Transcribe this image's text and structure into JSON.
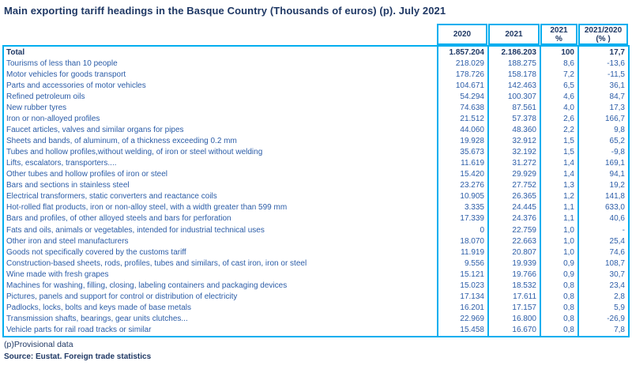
{
  "colors": {
    "border": "#00AEEF",
    "title_text": "#1F3864",
    "row_text": "#2B5CA7",
    "total_text": "#1F3864"
  },
  "footnote": "(p)Provisional data",
  "source": "Source: Eustat. Foreign trade statistics",
  "chart_data": {
    "type": "table",
    "title": "Main exporting tariff headings in the Basque Country (Thousands of euros) (p). July 2021",
    "columns": [
      "2020",
      "2021",
      "2021\n%",
      "2021/2020\n(% )"
    ],
    "rows": [
      [
        "Total",
        "1.857.204",
        "2.186.203",
        "100",
        "17,7"
      ],
      [
        "Tourisms of less than 10 people",
        "218.029",
        "188.275",
        "8,6",
        "-13,6"
      ],
      [
        "Motor vehicles for goods transport",
        "178.726",
        "158.178",
        "7,2",
        "-11,5"
      ],
      [
        "Parts and accessories of motor vehicles",
        "104.671",
        "142.463",
        "6,5",
        "36,1"
      ],
      [
        "Refined petroleum oils",
        "54.294",
        "100.307",
        "4,6",
        "84,7"
      ],
      [
        "New rubber tyres",
        "74.638",
        "87.561",
        "4,0",
        "17,3"
      ],
      [
        "Iron or non-alloyed profiles",
        "21.512",
        "57.378",
        "2,6",
        "166,7"
      ],
      [
        "Faucet articles, valves and similar organs for pipes",
        "44.060",
        "48.360",
        "2,2",
        "9,8"
      ],
      [
        "Sheets and bands, of aluminum, of a thickness exceeding 0.2 mm",
        "19.928",
        "32.912",
        "1,5",
        "65,2"
      ],
      [
        "Tubes and hollow profiles,without welding, of iron or steel without welding",
        "35.673",
        "32.192",
        "1,5",
        "-9,8"
      ],
      [
        "Lifts, escalators, transporters....",
        "11.619",
        "31.272",
        "1,4",
        "169,1"
      ],
      [
        "Other tubes and hollow profiles of iron or steel",
        "15.420",
        "29.929",
        "1,4",
        "94,1"
      ],
      [
        "Bars and sections in stainless steel",
        "23.276",
        "27.752",
        "1,3",
        "19,2"
      ],
      [
        "Electrical transformers, static converters and reactance coils",
        "10.905",
        "26.365",
        "1,2",
        "141,8"
      ],
      [
        "Hot-rolled flat products, iron or non-alloy steel, with a width greater than 599 mm",
        "3.335",
        "24.445",
        "1,1",
        "633,0"
      ],
      [
        "Bars and profiles, of other alloyed steels and bars for perforation",
        "17.339",
        "24.376",
        "1,1",
        "40,6"
      ],
      [
        "Fats and oils, animals or vegetables, intended for industrial technical uses",
        "0",
        "22.759",
        "1,0",
        "-"
      ],
      [
        "Other iron and steel manufacturers",
        "18.070",
        "22.663",
        "1,0",
        "25,4"
      ],
      [
        "Goods not specifically covered by the customs tariff",
        "11.919",
        "20.807",
        "1,0",
        "74,6"
      ],
      [
        "Construction-based sheets, rods, profiles, tubes and similars, of cast iron, iron or steel",
        "9.556",
        "19.939",
        "0,9",
        "108,7"
      ],
      [
        "Wine made with fresh grapes",
        "15.121",
        "19.766",
        "0,9",
        "30,7"
      ],
      [
        "Machines for washing, filling, closing, labeling containers and packaging devices",
        "15.023",
        "18.532",
        "0,8",
        "23,4"
      ],
      [
        "Pictures, panels and support for control or distribution of electricity",
        "17.134",
        "17.611",
        "0,8",
        "2,8"
      ],
      [
        "Padlocks, locks, bolts and keys made of base metals",
        "16.201",
        "17.157",
        "0,8",
        "5,9"
      ],
      [
        "Transmission shafts, bearings, gear units clutches...",
        "22.969",
        "16.800",
        "0,8",
        "-26,9"
      ],
      [
        "Vehicle parts for rail road tracks or similar",
        "15.458",
        "16.670",
        "0,8",
        "7,8"
      ]
    ]
  }
}
